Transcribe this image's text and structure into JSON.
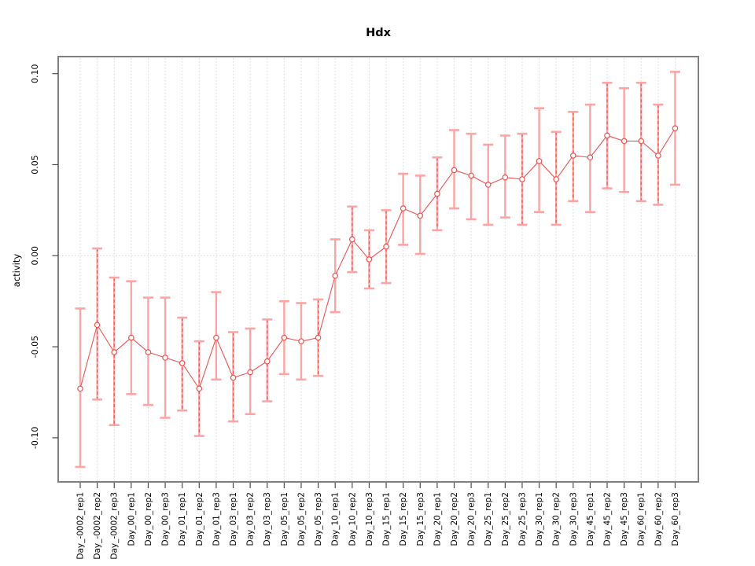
{
  "chart_data": {
    "type": "line",
    "title": "Hdx",
    "xlabel": "",
    "ylabel": "activity",
    "ylim": [
      -0.124,
      0.109
    ],
    "yticks": [
      -0.1,
      -0.05,
      0.0,
      0.05,
      0.1
    ],
    "ytick_labels": [
      "-0.10",
      "-0.05",
      "0.00",
      "0.05",
      "0.10"
    ],
    "grid": "dotted vertical gridline at every category; dotted horizontal line at y=0",
    "legend_position": "none",
    "marker": "open-circle",
    "categories": [
      "Day_-0002_rep1",
      "Day_-0002_rep2",
      "Day_-0002_rep3",
      "Day_00_rep1",
      "Day_00_rep2",
      "Day_00_rep3",
      "Day_01_rep1",
      "Day_01_rep2",
      "Day_01_rep3",
      "Day_03_rep1",
      "Day_03_rep2",
      "Day_03_rep3",
      "Day_05_rep1",
      "Day_05_rep2",
      "Day_05_rep3",
      "Day_10_rep1",
      "Day_10_rep2",
      "Day_10_rep3",
      "Day_15_rep1",
      "Day_15_rep2",
      "Day_15_rep3",
      "Day_20_rep1",
      "Day_20_rep2",
      "Day_20_rep3",
      "Day_25_rep1",
      "Day_25_rep2",
      "Day_25_rep3",
      "Day_30_rep1",
      "Day_30_rep2",
      "Day_30_rep3",
      "Day_45_rep1",
      "Day_45_rep2",
      "Day_45_rep3",
      "Day_60_rep1",
      "Day_60_rep2",
      "Day_60_rep3"
    ],
    "series": [
      {
        "name": "activity",
        "values": [
          -0.073,
          -0.038,
          -0.053,
          -0.045,
          -0.053,
          -0.056,
          -0.059,
          -0.073,
          -0.045,
          -0.067,
          -0.064,
          -0.058,
          -0.045,
          -0.047,
          -0.045,
          -0.011,
          0.009,
          -0.002,
          0.005,
          0.026,
          0.022,
          0.034,
          0.047,
          0.044,
          0.039,
          0.043,
          0.042,
          0.052,
          0.042,
          0.055,
          0.054,
          0.066,
          0.063,
          0.063,
          0.055,
          0.07
        ],
        "error_low": [
          -0.116,
          -0.079,
          -0.093,
          -0.076,
          -0.082,
          -0.089,
          -0.085,
          -0.099,
          -0.068,
          -0.091,
          -0.087,
          -0.08,
          -0.065,
          -0.068,
          -0.066,
          -0.031,
          -0.009,
          -0.018,
          -0.015,
          0.006,
          0.001,
          0.014,
          0.026,
          0.02,
          0.017,
          0.021,
          0.017,
          0.024,
          0.017,
          0.03,
          0.024,
          0.037,
          0.035,
          0.03,
          0.028,
          0.039
        ],
        "error_high": [
          -0.029,
          0.004,
          -0.012,
          -0.014,
          -0.023,
          -0.023,
          -0.034,
          -0.047,
          -0.02,
          -0.042,
          -0.04,
          -0.035,
          -0.025,
          -0.026,
          -0.024,
          0.009,
          0.027,
          0.014,
          0.025,
          0.045,
          0.044,
          0.054,
          0.069,
          0.067,
          0.061,
          0.066,
          0.067,
          0.081,
          0.068,
          0.079,
          0.083,
          0.095,
          0.092,
          0.095,
          0.083,
          0.101
        ],
        "error_bar_styles": [
          "solid",
          "dashed",
          "dashed",
          "solid",
          "solid",
          "solid",
          "dashed",
          "dashed",
          "solid",
          "dashed",
          "solid",
          "dashed",
          "solid",
          "solid",
          "dashed",
          "solid",
          "dashed",
          "dashed",
          "dashed",
          "solid",
          "solid",
          "dashed",
          "solid",
          "solid",
          "solid",
          "solid",
          "dashed",
          "solid",
          "dashed",
          "dashed",
          "solid",
          "dashed",
          "solid",
          "dashed",
          "dashed",
          "solid"
        ]
      }
    ],
    "colors": {
      "point": "#ef5350",
      "line": "#ef5350",
      "error_bar_solid": "#ffa4a4",
      "error_bar_dashed": "#ef5350",
      "gridline": "#dadada",
      "zero_line": "#dadada",
      "frame": "#808080",
      "tick": "#4d4d4d",
      "text": "#000000",
      "background": "#ffffff"
    }
  }
}
